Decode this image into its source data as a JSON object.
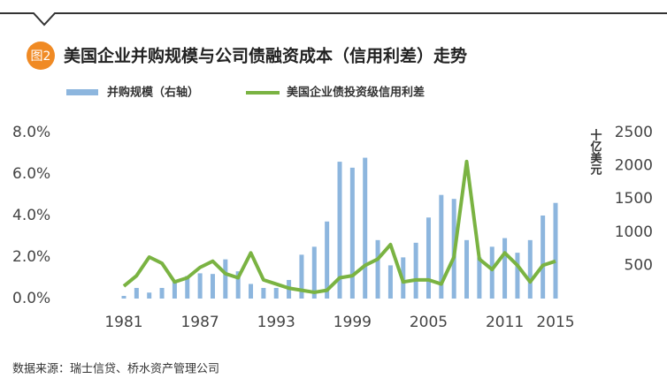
{
  "chart_data": {
    "type": "bar_line",
    "title": "美国企业并购规模与公司债融资成本（信用利差）走势",
    "badge": "图2",
    "source": "数据来源：瑞士信贷、桥水资产管理公司",
    "y2_label": "十亿美元",
    "categories": [
      "1981",
      null,
      null,
      null,
      null,
      null,
      "1987",
      null,
      null,
      null,
      null,
      null,
      "1993",
      null,
      null,
      null,
      null,
      null,
      "1999",
      null,
      null,
      null,
      null,
      null,
      "2005",
      null,
      null,
      null,
      null,
      null,
      "2011",
      null,
      null,
      null,
      "2015"
    ],
    "series": [
      {
        "name": "并购规模（右轴）",
        "kind": "bar",
        "axis": "y2",
        "color": "#8db6de",
        "values": [
          40,
          160,
          90,
          160,
          280,
          340,
          380,
          370,
          590,
          410,
          220,
          160,
          160,
          280,
          660,
          780,
          1160,
          2060,
          1970,
          2120,
          880,
          500,
          620,
          840,
          1220,
          1560,
          1500,
          880,
          620,
          780,
          910,
          690,
          880,
          1250,
          1440
        ]
      },
      {
        "name": "美国企业债投资级信用利差",
        "kind": "line",
        "axis": "y",
        "color": "#7ab342",
        "values": [
          0.6,
          1.1,
          2.0,
          1.7,
          0.8,
          1.0,
          1.5,
          1.8,
          1.2,
          1.0,
          2.2,
          0.9,
          0.7,
          0.5,
          0.4,
          0.3,
          0.4,
          1.0,
          1.1,
          1.6,
          1.9,
          2.6,
          0.8,
          0.9,
          0.9,
          0.7,
          2.0,
          6.6,
          1.9,
          1.4,
          2.2,
          1.6,
          0.8,
          1.6,
          1.8
        ]
      }
    ],
    "ylim": [
      0,
      8
    ],
    "yticks": [
      {
        "value": 0,
        "label": "0.0%"
      },
      {
        "value": 2,
        "label": "2.0%"
      },
      {
        "value": 4,
        "label": "4.0%"
      },
      {
        "value": 6,
        "label": "6.0%"
      },
      {
        "value": 8,
        "label": "8.0%"
      }
    ],
    "y2lim": [
      0,
      2500
    ],
    "y2ticks": [
      500,
      1000,
      1500,
      2000,
      2500
    ]
  }
}
